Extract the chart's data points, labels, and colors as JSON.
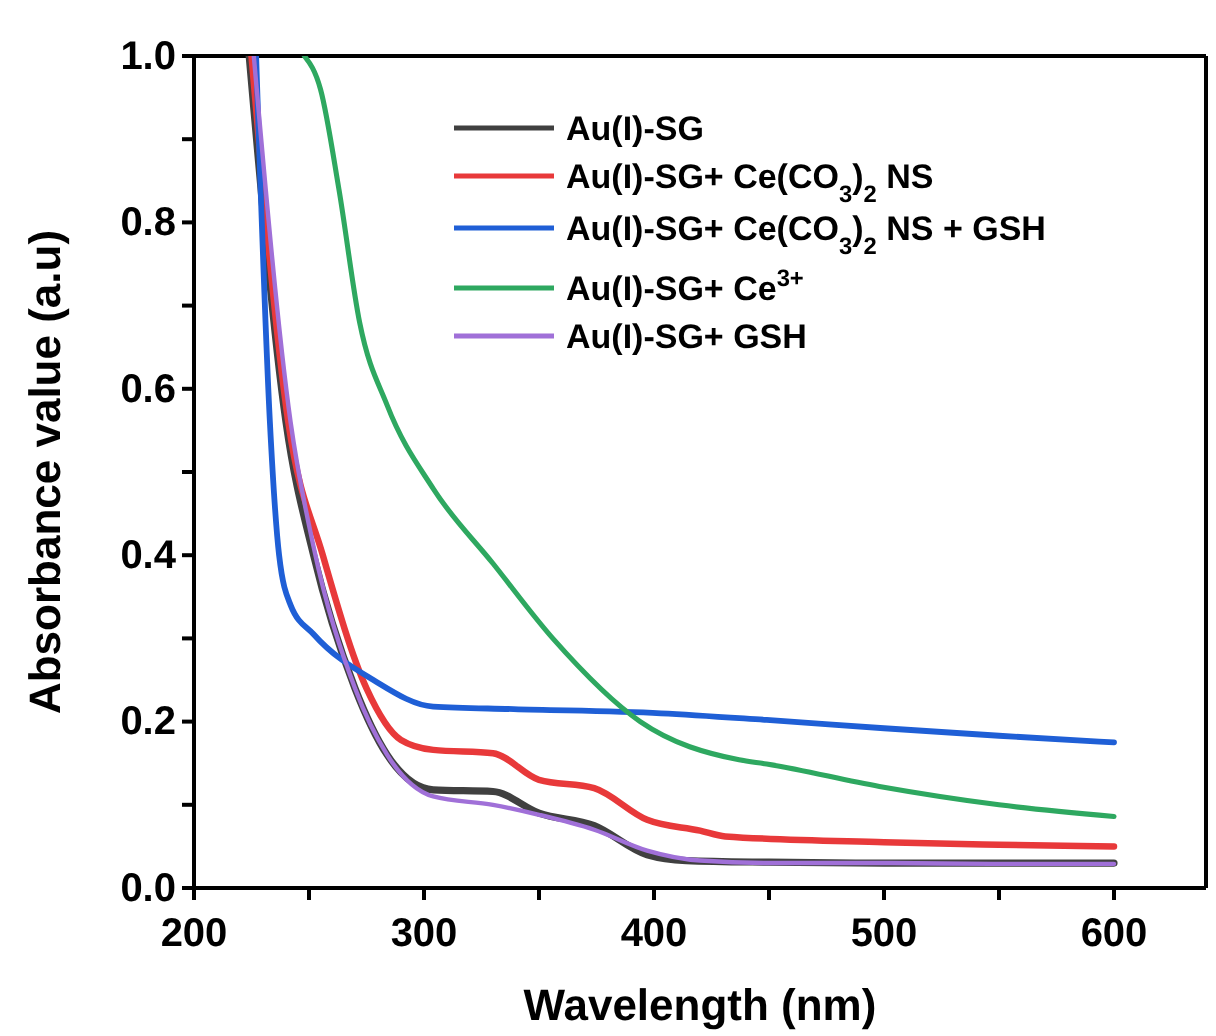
{
  "chart_data": {
    "type": "line",
    "xlabel": "Wavelength (nm)",
    "ylabel": "Absorbance value (a.u)",
    "xlim": [
      200,
      640
    ],
    "ylim": [
      0,
      1.0
    ],
    "xticks": [
      200,
      {
        "value": 250,
        "label": null
      },
      300,
      {
        "value": 350,
        "label": null
      },
      400,
      {
        "value": 450,
        "label": null
      },
      500,
      {
        "value": 550,
        "label": null
      },
      600
    ],
    "yticks": [
      {
        "value": 0,
        "label": "0.0"
      },
      {
        "value": 0.1,
        "label": null
      },
      0.2,
      {
        "value": 0.3,
        "label": null
      },
      0.4,
      {
        "value": 0.5,
        "label": null
      },
      0.6,
      {
        "value": 0.7,
        "label": null
      },
      0.8,
      {
        "value": 0.9,
        "label": null
      },
      {
        "value": 1.0,
        "label": "1.0"
      }
    ],
    "legend": "top right",
    "grid": false,
    "line_style": "solid",
    "marker": "none",
    "series": [
      {
        "name": "Au(I)-SG",
        "color": "#404040",
        "x": [
          224,
          240,
          252,
          270,
          284,
          304,
          330,
          350,
          374,
          397,
          414,
          450,
          500,
          550,
          600
        ],
        "values": [
          1.0,
          0.56,
          0.4,
          0.24,
          0.16,
          0.118,
          0.116,
          0.09,
          0.075,
          0.04,
          0.033,
          0.031,
          0.03,
          0.03,
          0.03
        ]
      },
      {
        "name": "Au(I)-SG+ Ce(CO$_{3}$)$_{2}$ NS",
        "color": "#e8393a",
        "x": [
          225,
          241,
          256,
          275,
          290,
          304,
          330,
          350,
          374,
          397,
          420,
          431,
          500,
          550,
          600
        ],
        "values": [
          1.0,
          0.56,
          0.4,
          0.24,
          0.178,
          0.166,
          0.162,
          0.13,
          0.12,
          0.082,
          0.069,
          0.062,
          0.055,
          0.052,
          0.05
        ]
      },
      {
        "name": "Au(I)-SG+ Ce(CO$_{3}$)$_{2}$ NS + GSH",
        "color": "#1f5fd6",
        "x": [
          227,
          233,
          237,
          242,
          252,
          278,
          304,
          339,
          403,
          449,
          500,
          550,
          600
        ],
        "values": [
          1.0,
          0.56,
          0.4,
          0.34,
          0.305,
          0.25,
          0.218,
          0.215,
          0.21,
          0.202,
          0.192,
          0.183,
          0.175
        ]
      },
      {
        "name": "Au(I)-SG+ Ce$^{3+}$",
        "color": "#2ea860",
        "x": [
          248,
          255,
          263,
          272,
          284,
          304,
          330,
          356,
          394,
          437,
          449,
          498,
          550,
          600
        ],
        "values": [
          1.0,
          0.96,
          0.84,
          0.68,
          0.58,
          0.48,
          0.39,
          0.3,
          0.2,
          0.154,
          0.149,
          0.122,
          0.1,
          0.086
        ]
      },
      {
        "name": "Au(I)-SG+ GSH",
        "color": "#a070d8",
        "x": [
          226,
          242,
          252,
          270,
          284,
          304,
          330,
          350,
          374,
          397,
          420,
          450,
          500,
          550,
          600
        ],
        "values": [
          1.0,
          0.56,
          0.41,
          0.24,
          0.16,
          0.11,
          0.1,
          0.088,
          0.07,
          0.045,
          0.033,
          0.03,
          0.03,
          0.029,
          0.029
        ]
      }
    ]
  }
}
